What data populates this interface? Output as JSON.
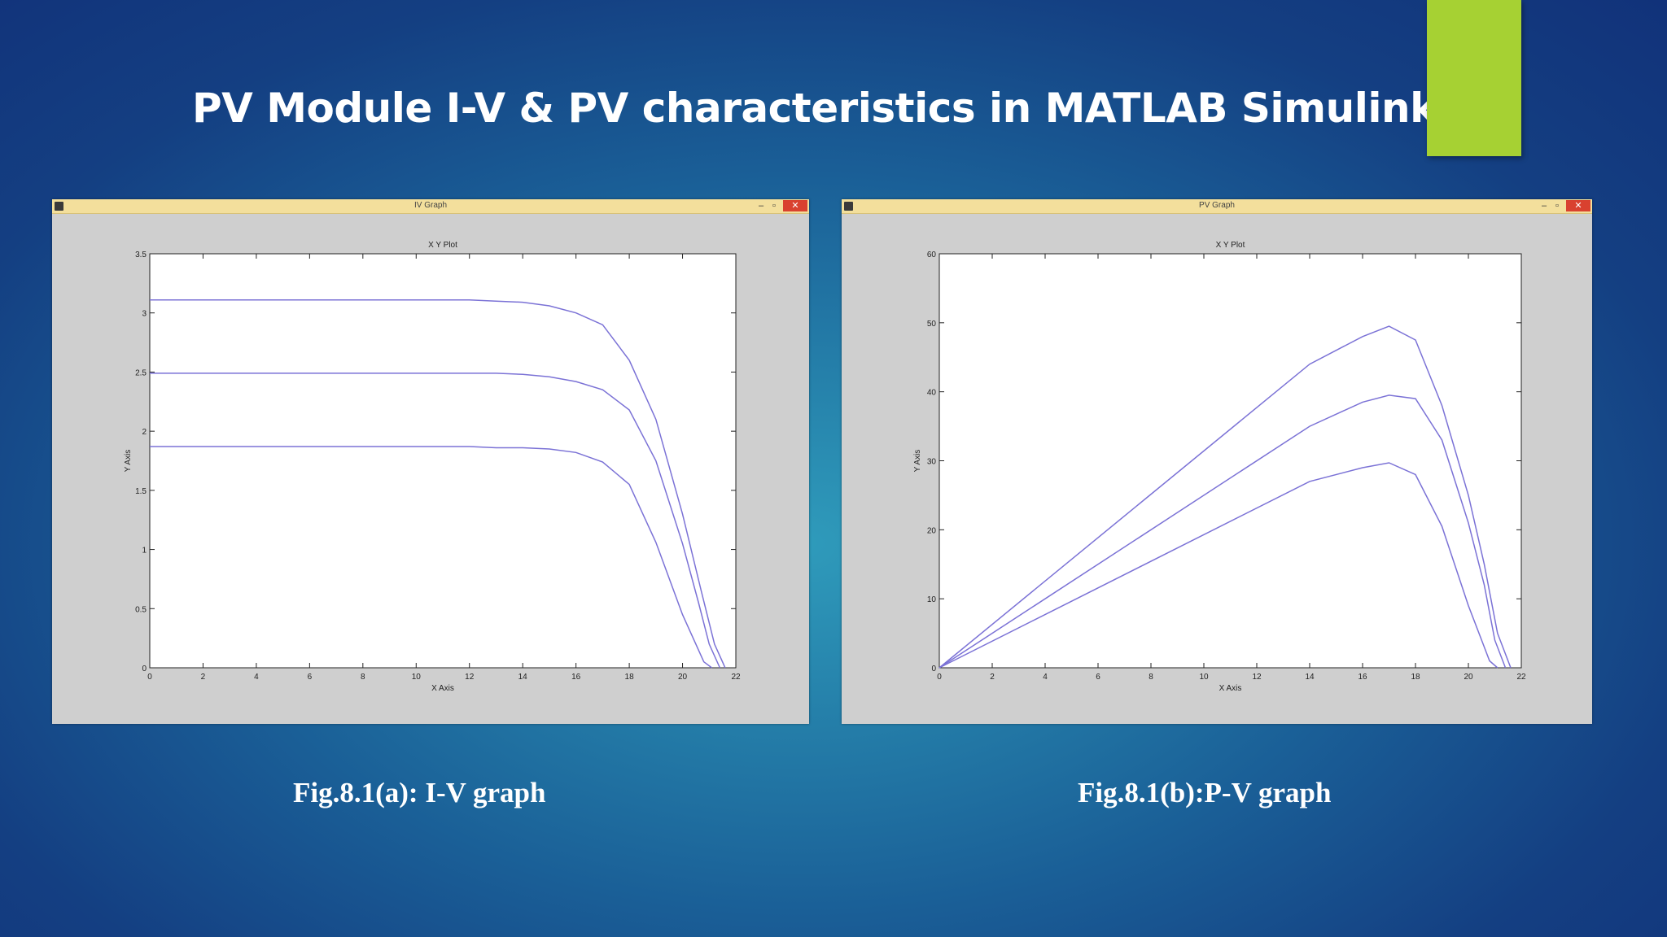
{
  "slide": {
    "title": "PV Module I-V & PV characteristics in MATLAB Simulink",
    "accent_color": "#a6d133"
  },
  "windows": [
    {
      "title": "IV Graph",
      "buttons": {
        "minimize": "–",
        "maximize": "▫",
        "close": "✕"
      }
    },
    {
      "title": "PV Graph",
      "buttons": {
        "minimize": "–",
        "maximize": "▫",
        "close": "✕"
      }
    }
  ],
  "captions": {
    "iv": "Fig.8.1(a): I-V graph",
    "pv": "Fig.8.1(b):P-V graph"
  },
  "chart_data": [
    {
      "type": "line",
      "title": "X Y Plot",
      "xlabel": "X Axis",
      "ylabel": "Y Axis",
      "xlim": [
        0,
        22
      ],
      "ylim": [
        0,
        3.5
      ],
      "xticks": [
        0,
        2,
        4,
        6,
        8,
        10,
        12,
        14,
        16,
        18,
        20,
        22
      ],
      "yticks": [
        0,
        0.5,
        1,
        1.5,
        2,
        2.5,
        3,
        3.5
      ],
      "line_color": "#7b72d6",
      "grid": false,
      "series": [
        {
          "x": [
            0,
            2,
            4,
            6,
            8,
            10,
            12,
            13,
            14,
            15,
            16,
            17,
            18,
            19,
            20,
            20.7,
            21.2,
            21.6
          ],
          "values": [
            3.11,
            3.11,
            3.11,
            3.11,
            3.11,
            3.11,
            3.11,
            3.1,
            3.09,
            3.06,
            3.0,
            2.9,
            2.6,
            2.1,
            1.3,
            0.65,
            0.2,
            0
          ]
        },
        {
          "x": [
            0,
            2,
            4,
            6,
            8,
            10,
            12,
            13,
            14,
            15,
            16,
            17,
            18,
            19,
            20,
            20.6,
            21.0,
            21.4
          ],
          "values": [
            2.49,
            2.49,
            2.49,
            2.49,
            2.49,
            2.49,
            2.49,
            2.49,
            2.48,
            2.46,
            2.42,
            2.35,
            2.18,
            1.75,
            1.05,
            0.55,
            0.2,
            0
          ]
        },
        {
          "x": [
            0,
            2,
            4,
            6,
            8,
            10,
            12,
            13,
            14,
            15,
            16,
            17,
            18,
            19,
            20,
            20.5,
            20.8,
            21.1
          ],
          "values": [
            1.87,
            1.87,
            1.87,
            1.87,
            1.87,
            1.87,
            1.87,
            1.86,
            1.86,
            1.85,
            1.82,
            1.74,
            1.55,
            1.06,
            0.45,
            0.2,
            0.05,
            0
          ]
        }
      ]
    },
    {
      "type": "line",
      "title": "X Y Plot",
      "xlabel": "X Axis",
      "ylabel": "Y Axis",
      "xlim": [
        0,
        22
      ],
      "ylim": [
        0,
        60
      ],
      "xticks": [
        0,
        2,
        4,
        6,
        8,
        10,
        12,
        14,
        16,
        18,
        20,
        22
      ],
      "yticks": [
        0,
        10,
        20,
        30,
        40,
        50,
        60
      ],
      "line_color": "#7b72d6",
      "grid": false,
      "series": [
        {
          "x": [
            0,
            14,
            16,
            17,
            18,
            19,
            20,
            20.6,
            21.1,
            21.6
          ],
          "values": [
            0,
            44,
            48,
            49.5,
            47.5,
            38,
            25,
            15,
            5,
            0
          ]
        },
        {
          "x": [
            0,
            14,
            16,
            17,
            18,
            19,
            20,
            20.6,
            21.0,
            21.4
          ],
          "values": [
            0,
            35,
            38.5,
            39.5,
            39,
            33,
            21,
            12,
            4,
            0
          ]
        },
        {
          "x": [
            0,
            14,
            16,
            17,
            18,
            19,
            20,
            20.5,
            20.8,
            21.1
          ],
          "values": [
            0,
            27,
            29,
            29.7,
            28,
            20.5,
            9,
            4,
            1,
            0
          ]
        }
      ]
    }
  ]
}
